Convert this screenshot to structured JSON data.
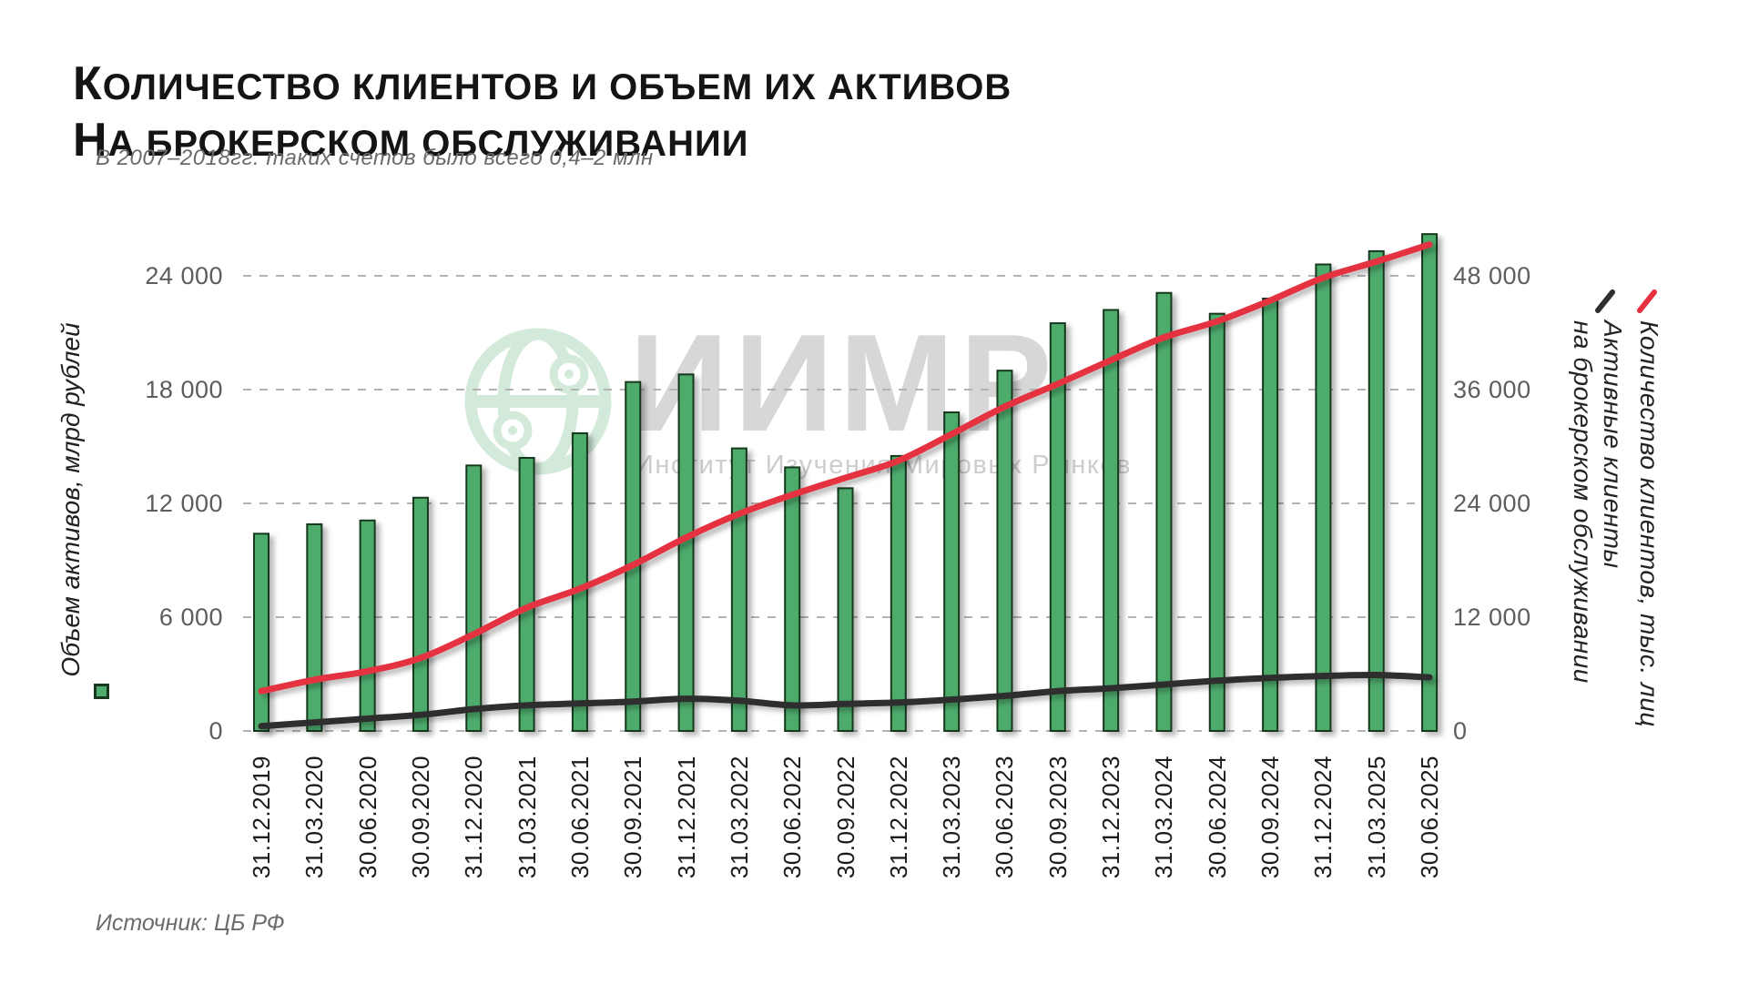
{
  "title": {
    "line1": "Количество клиентов и объем их активов",
    "line2": "на брокерском обслуживании"
  },
  "subtitle": "В 2007–2018гг. таких счетов было всего 0,4–2 млн",
  "source": "Источник: ЦБ РФ",
  "watermark": {
    "icon": "globe-network-icon",
    "acronym": "ИИМР",
    "name": "Институт Изучения Мировых Рынков"
  },
  "left_axis": {
    "label": "Объем активов, млрд рублей",
    "ticks": [
      "24 000",
      "18 000",
      "12 000",
      "6 000",
      "0"
    ]
  },
  "right_axis": {
    "ticks": [
      "48 000",
      "36 000",
      "24 000",
      "12 000",
      "0"
    ]
  },
  "legend": {
    "clients_label": "Количество клиентов, тыс. лиц",
    "active_label_line1": "Активные клиенты",
    "active_label_line2": "на брокерском обслуживании"
  },
  "colors": {
    "bar_fill": "#4dab6c",
    "bar_border": "#16381f",
    "clients_line": "#e53140",
    "active_line": "#2f2f2f",
    "grid": "#b3b3b3",
    "tick_text": "#5d5d5d"
  },
  "chart_data": {
    "type": "bar+line",
    "title": "Количество клиентов и объем их активов на брокерском обслуживании",
    "categories": [
      "31.12.2019",
      "31.03.2020",
      "30.06.2020",
      "30.09.2020",
      "31.12.2020",
      "31.03.2021",
      "30.06.2021",
      "30.09.2021",
      "31.12.2021",
      "31.03.2022",
      "30.06.2022",
      "30.09.2022",
      "31.12.2022",
      "31.03.2023",
      "30.06.2023",
      "30.09.2023",
      "31.12.2023",
      "31.03.2024",
      "30.06.2024",
      "30.09.2024",
      "31.12.2024",
      "31.03.2025",
      "30.06.2025"
    ],
    "series": [
      {
        "name": "Объем активов, млрд рублей",
        "type": "bar",
        "axis": "left",
        "color": "#4dab6c",
        "values": [
          10400,
          10900,
          11100,
          12300,
          14000,
          14400,
          15700,
          18400,
          18800,
          14900,
          13900,
          12800,
          14500,
          16800,
          19000,
          21500,
          22200,
          23100,
          22000,
          22800,
          24600,
          25300,
          26200
        ]
      },
      {
        "name": "Количество клиентов, тыс. лиц",
        "type": "line",
        "axis": "right",
        "color": "#e53140",
        "values": [
          4200,
          5400,
          6300,
          7700,
          10200,
          13000,
          15000,
          17500,
          20400,
          22900,
          24900,
          26700,
          28500,
          31300,
          34200,
          36600,
          39100,
          41500,
          43200,
          45400,
          47800,
          49500,
          51300
        ]
      },
      {
        "name": "Активные клиенты на брокерском обслуживании",
        "type": "line",
        "axis": "right",
        "color": "#2f2f2f",
        "values": [
          500,
          900,
          1300,
          1700,
          2300,
          2700,
          2900,
          3100,
          3400,
          3200,
          2700,
          2850,
          3000,
          3300,
          3700,
          4200,
          4500,
          4900,
          5300,
          5600,
          5800,
          5900,
          5650
        ]
      }
    ],
    "left_ylim": [
      0,
      24000
    ],
    "right_ylim": [
      0,
      48000
    ],
    "left_yticks": [
      24000,
      18000,
      12000,
      6000,
      0
    ],
    "right_yticks": [
      48000,
      36000,
      24000,
      12000,
      0
    ],
    "grid": "horizontal-dashed",
    "legend_position": "left-and-right-rotated"
  }
}
